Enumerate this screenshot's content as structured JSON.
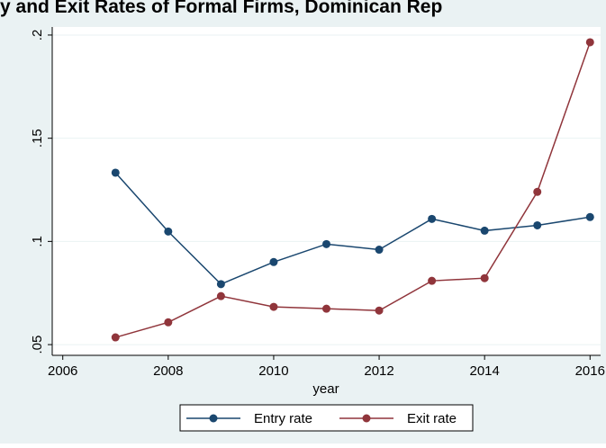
{
  "chart_data": {
    "type": "line",
    "title": "y and Exit Rates of Formal Firms, Dominican Rep",
    "x_label": "year",
    "x": [
      2007,
      2008,
      2009,
      2010,
      2011,
      2012,
      2013,
      2014,
      2015,
      2016
    ],
    "series": [
      {
        "name": "Entry rate",
        "color": "#1a476f",
        "values": [
          0.1333,
          0.1048,
          0.0793,
          0.09,
          0.0987,
          0.096,
          0.1109,
          0.1052,
          0.1078,
          0.1118
        ]
      },
      {
        "name": "Exit rate",
        "color": "#90353b",
        "values": [
          0.0535,
          0.0608,
          0.0735,
          0.0683,
          0.0674,
          0.0665,
          0.0809,
          0.0822,
          0.124,
          0.1965
        ]
      }
    ],
    "xlim": [
      2005.8,
      2016.2
    ],
    "xticks": [
      2006,
      2008,
      2010,
      2012,
      2014,
      2016
    ],
    "ylim": [
      0.0448,
      0.2039
    ],
    "yticks": [
      {
        "value": 0.05,
        "label": ".05"
      },
      {
        "value": 0.1,
        "label": ".1"
      },
      {
        "value": 0.15,
        "label": ".15"
      },
      {
        "value": 0.2,
        "label": ".2"
      }
    ],
    "grid": true,
    "legend": "bottom"
  }
}
